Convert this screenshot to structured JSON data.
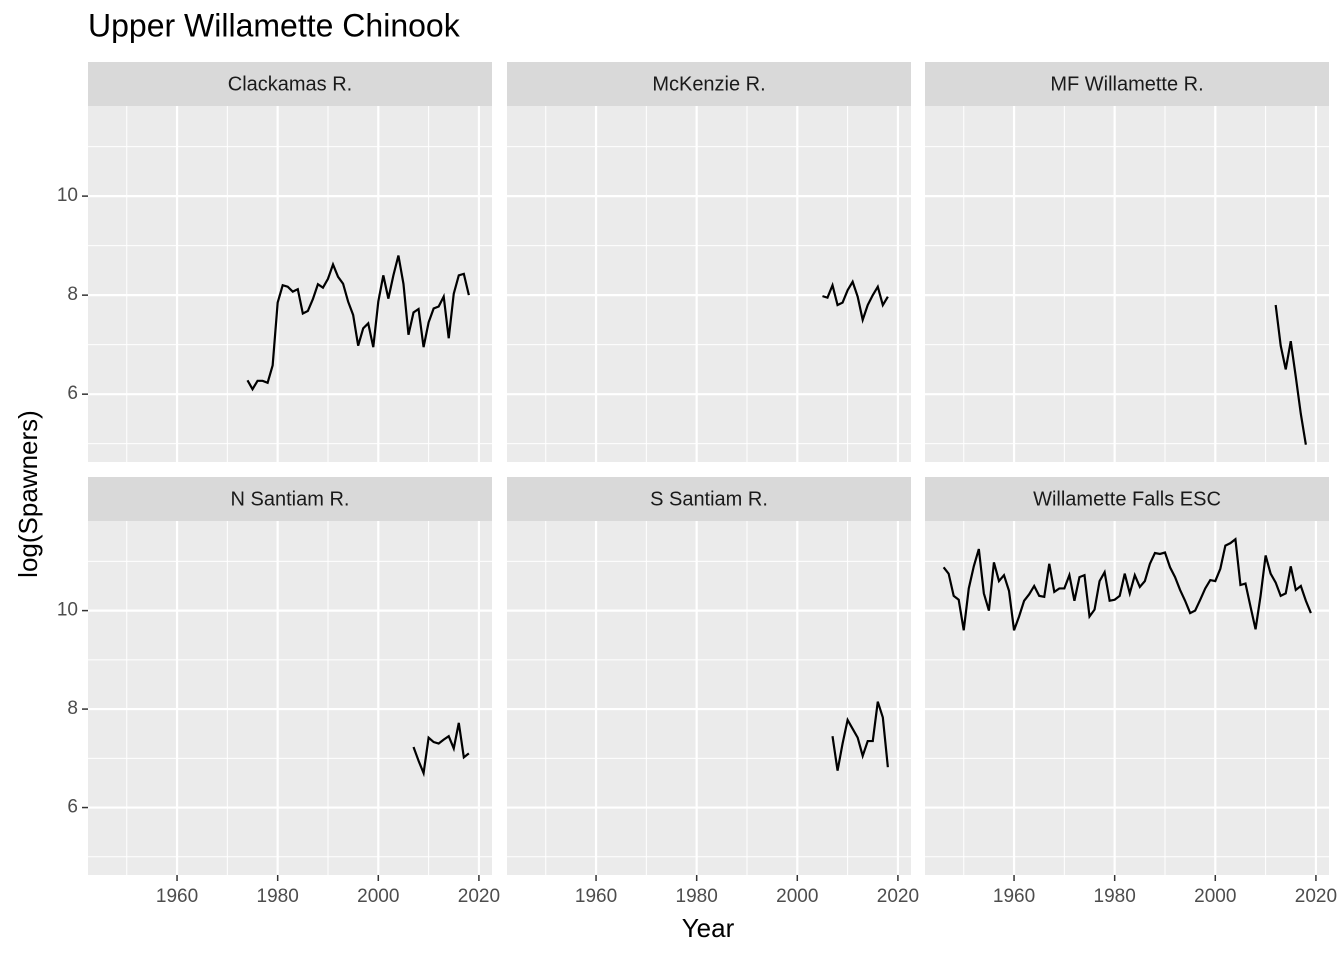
{
  "chart_data": {
    "type": "line",
    "title": "Upper Willamette Chinook",
    "x_label": "Year",
    "y_label": "log(Spawners)",
    "xlim": [
      1942.3,
      2022.6
    ],
    "ylim": [
      4.63,
      11.82
    ],
    "xticks": [
      1960,
      1980,
      2000,
      2020
    ],
    "yticks": [
      6,
      8,
      10
    ],
    "grid": true,
    "color": "#000000",
    "facets": [
      {
        "name": "Clackamas R.",
        "x": [
          1974,
          1975,
          1976,
          1977,
          1978,
          1979,
          1980,
          1981,
          1982,
          1983,
          1984,
          1985,
          1986,
          1987,
          1988,
          1989,
          1990,
          1991,
          1992,
          1993,
          1994,
          1995,
          1996,
          1997,
          1998,
          1999,
          2000,
          2001,
          2002,
          2003,
          2004,
          2005,
          2006,
          2007,
          2008,
          2009,
          2010,
          2011,
          2012,
          2013,
          2014,
          2015,
          2016,
          2017,
          2018
        ],
        "values": [
          6.28,
          6.1,
          6.27,
          6.27,
          6.23,
          6.58,
          7.85,
          8.2,
          8.17,
          8.07,
          8.12,
          7.63,
          7.68,
          7.92,
          8.22,
          8.15,
          8.33,
          8.62,
          8.37,
          8.23,
          7.87,
          7.6,
          6.98,
          7.33,
          7.43,
          6.95,
          7.87,
          8.4,
          7.93,
          8.4,
          8.8,
          8.23,
          7.2,
          7.65,
          7.72,
          6.95,
          7.45,
          7.73,
          7.77,
          7.97,
          7.13,
          8.03,
          8.4,
          8.43,
          8.0
        ]
      },
      {
        "name": "McKenzie R.",
        "x": [
          2005,
          2006,
          2007,
          2008,
          2009,
          2010,
          2011,
          2012,
          2013,
          2014,
          2015,
          2016,
          2017,
          2018
        ],
        "values": [
          7.98,
          7.95,
          8.2,
          7.8,
          7.85,
          8.1,
          8.27,
          7.97,
          7.5,
          7.8,
          8.0,
          8.17,
          7.8,
          7.97
        ]
      },
      {
        "name": "MF Willamette R.",
        "x": [
          2012,
          2013,
          2014,
          2015,
          2016,
          2017,
          2018
        ],
        "values": [
          7.8,
          6.98,
          6.5,
          7.07,
          6.35,
          5.6,
          4.98
        ]
      },
      {
        "name": "N Santiam R.",
        "x": [
          2007,
          2008,
          2009,
          2010,
          2011,
          2012,
          2013,
          2014,
          2015,
          2016,
          2017,
          2018
        ],
        "values": [
          7.23,
          6.95,
          6.7,
          7.42,
          7.33,
          7.3,
          7.38,
          7.45,
          7.2,
          7.72,
          7.02,
          7.1
        ]
      },
      {
        "name": "S Santiam R.",
        "x": [
          2007,
          2008,
          2009,
          2010,
          2011,
          2012,
          2013,
          2014,
          2015,
          2016,
          2017,
          2018
        ],
        "values": [
          7.45,
          6.75,
          7.3,
          7.78,
          7.6,
          7.42,
          7.05,
          7.35,
          7.35,
          8.15,
          7.83,
          6.82
        ]
      },
      {
        "name": "Willamette Falls ESC",
        "x": [
          1946,
          1947,
          1948,
          1949,
          1950,
          1951,
          1952,
          1953,
          1954,
          1955,
          1956,
          1957,
          1958,
          1959,
          1960,
          1961,
          1962,
          1963,
          1964,
          1965,
          1966,
          1967,
          1968,
          1969,
          1970,
          1971,
          1972,
          1973,
          1974,
          1975,
          1976,
          1977,
          1978,
          1979,
          1980,
          1981,
          1982,
          1983,
          1984,
          1985,
          1986,
          1987,
          1988,
          1989,
          1990,
          1991,
          1992,
          1993,
          1994,
          1995,
          1996,
          1997,
          1998,
          1999,
          2000,
          2001,
          2002,
          2003,
          2004,
          2005,
          2006,
          2007,
          2008,
          2009,
          2010,
          2011,
          2012,
          2013,
          2014,
          2015,
          2016,
          2017,
          2018,
          2019
        ],
        "values": [
          10.88,
          10.75,
          10.3,
          10.22,
          9.6,
          10.45,
          10.9,
          11.25,
          10.35,
          10.0,
          10.98,
          10.6,
          10.72,
          10.4,
          9.6,
          9.88,
          10.2,
          10.33,
          10.5,
          10.3,
          10.28,
          10.95,
          10.38,
          10.45,
          10.45,
          10.72,
          10.2,
          10.68,
          10.72,
          9.88,
          10.02,
          10.6,
          10.78,
          10.2,
          10.22,
          10.3,
          10.75,
          10.35,
          10.72,
          10.48,
          10.6,
          10.95,
          11.17,
          11.15,
          11.18,
          10.88,
          10.68,
          10.42,
          10.2,
          9.95,
          10.0,
          10.22,
          10.45,
          10.62,
          10.6,
          10.85,
          11.32,
          11.37,
          11.45,
          10.52,
          10.55,
          10.08,
          9.62,
          10.3,
          11.12,
          10.75,
          10.57,
          10.3,
          10.35,
          10.9,
          10.42,
          10.5,
          10.2,
          9.95
        ]
      }
    ]
  }
}
